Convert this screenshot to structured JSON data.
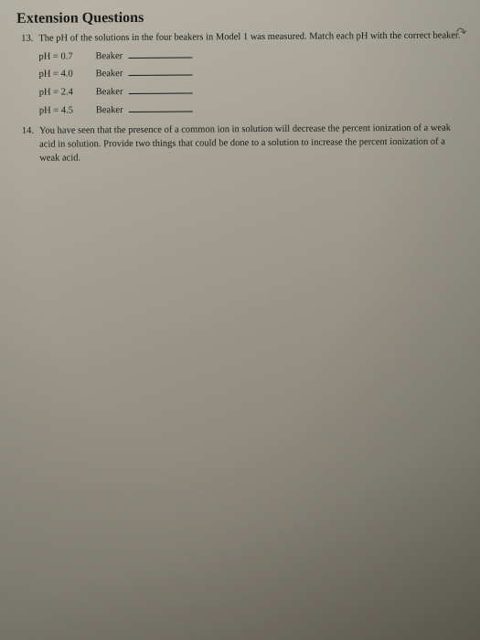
{
  "heading": "Extension Questions",
  "q13": {
    "number": "13.",
    "text": "The pH of the solutions in the four beakers in Model 1 was measured. Match each pH with the correct beaker.",
    "lines": [
      {
        "ph": "pH = 0.7",
        "label": "Beaker"
      },
      {
        "ph": "pH = 4.0",
        "label": "Beaker"
      },
      {
        "ph": "pH = 2.4",
        "label": "Beaker"
      },
      {
        "ph": "pH = 4.5",
        "label": "Beaker"
      }
    ]
  },
  "q14": {
    "number": "14.",
    "text": "You have seen that the presence of a common ion in solution will decrease the percent ionization of a weak acid in solution. Provide two things that could be done to a solution to increase the percent ionization of a weak acid."
  },
  "annotation": "↷",
  "colors": {
    "text": "#1a1a1a",
    "bg_light": "#b8b4a8",
    "bg_dark": "#686458"
  }
}
